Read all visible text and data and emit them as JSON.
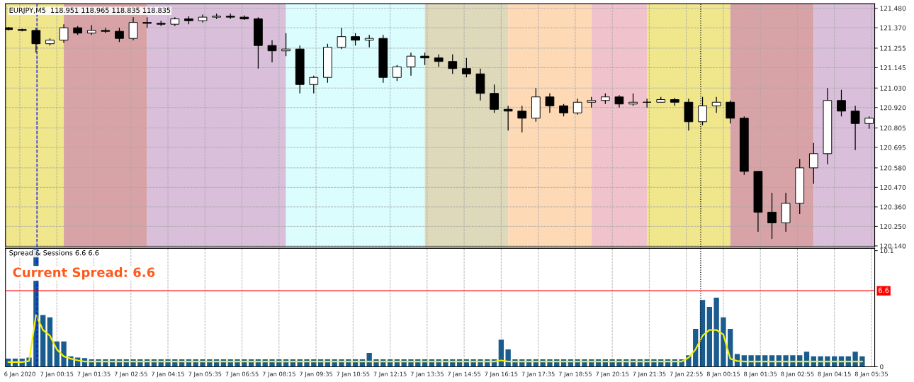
{
  "chart_data": [
    {
      "type": "candlestick",
      "title": "EURJPY,M5  118.951 118.965 118.835 118.835",
      "x": [
        "2020-01-06T22:30",
        "2020-01-06T23:00",
        "2020-01-06T23:30",
        "2020-01-07T00:00",
        "2020-01-07T00:30",
        "2020-01-07T01:00",
        "2020-01-07T01:30",
        "2020-01-07T02:00",
        "2020-01-07T02:30",
        "2020-01-07T03:00",
        "2020-01-07T03:30",
        "2020-01-07T04:00",
        "2020-01-07T04:30",
        "2020-01-07T05:00",
        "2020-01-07T05:30",
        "2020-01-07T06:00",
        "2020-01-07T06:30",
        "2020-01-07T07:00",
        "2020-01-07T07:30",
        "2020-01-07T08:00",
        "2020-01-07T08:30",
        "2020-01-07T09:00",
        "2020-01-07T09:30",
        "2020-01-07T10:00",
        "2020-01-07T10:30",
        "2020-01-07T11:00",
        "2020-01-07T11:30",
        "2020-01-07T12:00",
        "2020-01-07T12:30",
        "2020-01-07T13:00",
        "2020-01-07T13:30",
        "2020-01-07T14:00",
        "2020-01-07T14:30",
        "2020-01-07T15:00",
        "2020-01-07T15:30",
        "2020-01-07T16:00",
        "2020-01-07T16:30",
        "2020-01-07T17:00",
        "2020-01-07T17:30",
        "2020-01-07T18:00",
        "2020-01-07T18:30",
        "2020-01-07T19:00",
        "2020-01-07T19:30",
        "2020-01-07T20:00",
        "2020-01-07T20:30",
        "2020-01-07T21:00",
        "2020-01-07T21:30",
        "2020-01-07T22:00",
        "2020-01-07T22:30",
        "2020-01-07T23:00",
        "2020-01-07T23:30",
        "2020-01-08T00:00",
        "2020-01-08T00:30",
        "2020-01-08T01:00",
        "2020-01-08T01:30",
        "2020-01-08T02:00",
        "2020-01-08T02:30",
        "2020-01-08T03:00",
        "2020-01-08T03:30",
        "2020-01-08T04:00",
        "2020-01-08T04:30",
        "2020-01-08T05:00",
        "2020-01-08T05:30"
      ],
      "ohlc": [
        [
          121.37,
          121.375,
          121.355,
          121.36
        ],
        [
          121.36,
          121.365,
          121.35,
          121.355
        ],
        [
          121.355,
          121.37,
          121.23,
          121.28
        ],
        [
          121.28,
          121.31,
          121.27,
          121.3
        ],
        [
          121.3,
          121.39,
          121.285,
          121.37
        ],
        [
          121.37,
          121.38,
          121.33,
          121.34
        ],
        [
          121.34,
          121.385,
          121.33,
          121.355
        ],
        [
          121.355,
          121.37,
          121.34,
          121.35
        ],
        [
          121.35,
          121.37,
          121.29,
          121.31
        ],
        [
          121.31,
          121.43,
          121.3,
          121.4
        ],
        [
          121.4,
          121.43,
          121.37,
          121.395
        ],
        [
          121.395,
          121.41,
          121.38,
          121.39
        ],
        [
          121.39,
          121.43,
          121.38,
          121.42
        ],
        [
          121.42,
          121.435,
          121.39,
          121.41
        ],
        [
          121.41,
          121.445,
          121.4,
          121.43
        ],
        [
          121.43,
          121.45,
          121.42,
          121.435
        ],
        [
          121.435,
          121.45,
          121.42,
          121.43
        ],
        [
          121.43,
          121.44,
          121.415,
          121.42
        ],
        [
          121.42,
          121.43,
          121.14,
          121.27
        ],
        [
          121.27,
          121.3,
          121.175,
          121.24
        ],
        [
          121.24,
          121.34,
          121.21,
          121.25
        ],
        [
          121.25,
          121.27,
          121.0,
          121.05
        ],
        [
          121.05,
          121.1,
          121.0,
          121.09
        ],
        [
          121.09,
          121.28,
          121.06,
          121.26
        ],
        [
          121.26,
          121.37,
          121.25,
          121.32
        ],
        [
          121.32,
          121.34,
          121.27,
          121.3
        ],
        [
          121.3,
          121.33,
          121.26,
          121.31
        ],
        [
          121.31,
          121.33,
          121.06,
          121.09
        ],
        [
          121.09,
          121.16,
          121.07,
          121.15
        ],
        [
          121.15,
          121.23,
          121.1,
          121.21
        ],
        [
          121.21,
          121.23,
          121.16,
          121.2
        ],
        [
          121.2,
          121.22,
          121.15,
          121.18
        ],
        [
          121.18,
          121.22,
          121.11,
          121.14
        ],
        [
          121.14,
          121.2,
          121.09,
          121.11
        ],
        [
          121.11,
          121.14,
          120.96,
          121.0
        ],
        [
          121.0,
          121.05,
          120.89,
          120.91
        ],
        [
          120.91,
          120.93,
          120.79,
          120.9
        ],
        [
          120.9,
          120.93,
          120.78,
          120.86
        ],
        [
          120.86,
          121.03,
          120.84,
          120.98
        ],
        [
          120.98,
          121.0,
          120.89,
          120.93
        ],
        [
          120.93,
          120.94,
          120.87,
          120.89
        ],
        [
          120.89,
          120.97,
          120.88,
          120.95
        ],
        [
          120.95,
          120.98,
          120.92,
          120.96
        ],
        [
          120.96,
          121.0,
          120.94,
          120.98
        ],
        [
          120.98,
          120.99,
          120.92,
          120.94
        ],
        [
          120.94,
          121.0,
          120.93,
          120.95
        ],
        [
          120.95,
          120.97,
          120.92,
          120.95
        ],
        [
          120.95,
          120.98,
          120.95,
          120.965
        ],
        [
          120.965,
          120.975,
          120.93,
          120.95
        ],
        [
          120.95,
          120.97,
          120.79,
          120.84
        ],
        [
          120.84,
          120.98,
          120.82,
          120.93
        ],
        [
          120.93,
          120.98,
          120.89,
          120.95
        ],
        [
          120.95,
          120.96,
          120.83,
          120.86
        ],
        [
          120.86,
          120.87,
          120.54,
          120.56
        ],
        [
          120.56,
          120.56,
          120.22,
          120.33
        ],
        [
          120.33,
          120.44,
          120.18,
          120.27
        ],
        [
          120.27,
          120.44,
          120.22,
          120.38
        ],
        [
          120.38,
          120.63,
          120.32,
          120.58
        ],
        [
          120.58,
          120.72,
          120.49,
          120.66
        ],
        [
          120.66,
          121.03,
          120.6,
          120.96
        ],
        [
          120.96,
          121.02,
          120.87,
          120.9
        ],
        [
          120.9,
          120.93,
          120.68,
          120.83
        ],
        [
          120.83,
          120.87,
          120.8,
          120.86
        ]
      ],
      "xlim": [
        "2020-01-06T22:24",
        "2020-01-08T05:42"
      ],
      "ylim": [
        120.135,
        121.505
      ],
      "xticks": [
        {
          "value": "2020-01-06T22:55",
          "label": null
        },
        {
          "value": "2020-01-07T00:15",
          "label": null
        },
        {
          "value": "2020-01-07T01:35",
          "label": null
        },
        {
          "value": "2020-01-07T02:55",
          "label": null
        },
        {
          "value": "2020-01-07T04:15",
          "label": null
        },
        {
          "value": "2020-01-07T05:35",
          "label": null
        },
        {
          "value": "2020-01-07T06:55",
          "label": null
        },
        {
          "value": "2020-01-07T08:15",
          "label": null
        },
        {
          "value": "2020-01-07T09:35",
          "label": null
        },
        {
          "value": "2020-01-07T10:55",
          "label": null
        },
        {
          "value": "2020-01-07T12:15",
          "label": null
        },
        {
          "value": "2020-01-07T13:35",
          "label": null
        },
        {
          "value": "2020-01-07T14:55",
          "label": null
        },
        {
          "value": "2020-01-07T16:15",
          "label": null
        },
        {
          "value": "2020-01-07T17:35",
          "label": null
        },
        {
          "value": "2020-01-07T18:55",
          "label": null
        },
        {
          "value": "2020-01-07T20:15",
          "label": null
        },
        {
          "value": "2020-01-07T21:35",
          "label": null
        },
        {
          "value": "2020-01-07T22:55",
          "label": null
        },
        {
          "value": "2020-01-08T00:15",
          "label": null
        },
        {
          "value": "2020-01-08T01:35",
          "label": null
        },
        {
          "value": "2020-01-08T02:55",
          "label": null
        },
        {
          "value": "2020-01-08T04:15",
          "label": null
        },
        {
          "value": "2020-01-08T05:35",
          "label": null
        }
      ],
      "yticks": [
        {
          "value": 120.14,
          "label": "120.140"
        },
        {
          "value": 120.25,
          "label": "120.250"
        },
        {
          "value": 120.36,
          "label": "120.360"
        },
        {
          "value": 120.47,
          "label": "120.470"
        },
        {
          "value": 120.58,
          "label": "120.580"
        },
        {
          "value": 120.695,
          "label": "120.695"
        },
        {
          "value": 120.805,
          "label": "120.805"
        },
        {
          "value": 120.92,
          "label": "120.920"
        },
        {
          "value": 121.03,
          "label": "121.030"
        },
        {
          "value": 121.145,
          "label": "121.145"
        },
        {
          "value": 121.255,
          "label": "121.255"
        },
        {
          "value": 121.37,
          "label": "121.370"
        },
        {
          "value": 121.48,
          "label": "121.480"
        }
      ],
      "tick_labels": "y",
      "grid": true,
      "bands": [
        {
          "axis": "x",
          "from": "2020-01-06T22:24",
          "to": "2020-01-07T00:30",
          "color": "#f0e68c"
        },
        {
          "axis": "x",
          "from": "2020-01-07T00:30",
          "to": "2020-01-07T03:30",
          "color": "#d8a3a6"
        },
        {
          "axis": "x",
          "from": "2020-01-07T03:30",
          "to": "2020-01-07T08:30",
          "color": "#d9bfda"
        },
        {
          "axis": "x",
          "from": "2020-01-07T08:30",
          "to": "2020-01-07T13:30",
          "color": "#dbfdfe"
        },
        {
          "axis": "x",
          "from": "2020-01-07T13:30",
          "to": "2020-01-07T16:30",
          "color": "#ded9ba"
        },
        {
          "axis": "x",
          "from": "2020-01-07T16:30",
          "to": "2020-01-07T19:30",
          "color": "#fdd9b6"
        },
        {
          "axis": "x",
          "from": "2020-01-07T19:30",
          "to": "2020-01-07T21:30",
          "color": "#f0c3cc"
        },
        {
          "axis": "x",
          "from": "2020-01-07T21:30",
          "to": "2020-01-08T00:30",
          "color": "#f0e68c"
        },
        {
          "axis": "x",
          "from": "2020-01-08T00:30",
          "to": "2020-01-08T03:30",
          "color": "#d8a3a6"
        },
        {
          "axis": "x",
          "from": "2020-01-08T03:30",
          "to": "2020-01-08T05:42",
          "color": "#d9bfda"
        }
      ],
      "ref_lines": [
        {
          "axis": "x",
          "value": "2020-01-06T23:32",
          "color": "#0000ff",
          "line_style": "dashed"
        },
        {
          "axis": "x",
          "value": "2020-01-07T23:26",
          "color": "#000000",
          "line_style": "dotted"
        }
      ]
    },
    {
      "type": "bar",
      "title": "Spread & Sessions 6.6 6.6",
      "annotations": [
        "Current Spread: 6.6"
      ],
      "x": [
        "2020-01-06T22:30",
        "2020-01-06T22:45",
        "2020-01-06T23:00",
        "2020-01-06T23:15",
        "2020-01-06T23:30",
        "2020-01-06T23:45",
        "2020-01-07T00:00",
        "2020-01-07T00:15",
        "2020-01-07T00:30",
        "2020-01-07T00:45",
        "2020-01-07T01:00",
        "2020-01-07T01:15",
        "2020-01-07T01:30",
        "2020-01-07T01:45",
        "2020-01-07T02:00",
        "2020-01-07T02:15",
        "2020-01-07T02:30",
        "2020-01-07T02:45",
        "2020-01-07T03:00",
        "2020-01-07T03:15",
        "2020-01-07T03:30",
        "2020-01-07T03:45",
        "2020-01-07T04:00",
        "2020-01-07T04:15",
        "2020-01-07T04:30",
        "2020-01-07T04:45",
        "2020-01-07T05:00",
        "2020-01-07T05:15",
        "2020-01-07T05:30",
        "2020-01-07T05:45",
        "2020-01-07T06:00",
        "2020-01-07T06:15",
        "2020-01-07T06:30",
        "2020-01-07T06:45",
        "2020-01-07T07:00",
        "2020-01-07T07:15",
        "2020-01-07T07:30",
        "2020-01-07T07:45",
        "2020-01-07T08:00",
        "2020-01-07T08:15",
        "2020-01-07T08:30",
        "2020-01-07T08:45",
        "2020-01-07T09:00",
        "2020-01-07T09:15",
        "2020-01-07T09:30",
        "2020-01-07T09:45",
        "2020-01-07T10:00",
        "2020-01-07T10:15",
        "2020-01-07T10:30",
        "2020-01-07T10:45",
        "2020-01-07T11:00",
        "2020-01-07T11:15",
        "2020-01-07T11:30",
        "2020-01-07T11:45",
        "2020-01-07T12:00",
        "2020-01-07T12:15",
        "2020-01-07T12:30",
        "2020-01-07T12:45",
        "2020-01-07T13:00",
        "2020-01-07T13:15",
        "2020-01-07T13:30",
        "2020-01-07T13:45",
        "2020-01-07T14:00",
        "2020-01-07T14:15",
        "2020-01-07T14:30",
        "2020-01-07T14:45",
        "2020-01-07T15:00",
        "2020-01-07T15:15",
        "2020-01-07T15:30",
        "2020-01-07T15:45",
        "2020-01-07T16:00",
        "2020-01-07T16:15",
        "2020-01-07T16:30",
        "2020-01-07T16:45",
        "2020-01-07T17:00",
        "2020-01-07T17:15",
        "2020-01-07T17:30",
        "2020-01-07T17:45",
        "2020-01-07T18:00",
        "2020-01-07T18:15",
        "2020-01-07T18:30",
        "2020-01-07T18:45",
        "2020-01-07T19:00",
        "2020-01-07T19:15",
        "2020-01-07T19:30",
        "2020-01-07T19:45",
        "2020-01-07T20:00",
        "2020-01-07T20:15",
        "2020-01-07T20:30",
        "2020-01-07T20:45",
        "2020-01-07T21:00",
        "2020-01-07T21:15",
        "2020-01-07T21:30",
        "2020-01-07T21:45",
        "2020-01-07T22:00",
        "2020-01-07T22:15",
        "2020-01-07T22:30",
        "2020-01-07T22:45",
        "2020-01-07T23:00",
        "2020-01-07T23:15",
        "2020-01-07T23:30",
        "2020-01-07T23:45",
        "2020-01-08T00:00",
        "2020-01-08T00:15",
        "2020-01-08T00:30",
        "2020-01-08T00:45",
        "2020-01-08T01:00",
        "2020-01-08T01:15",
        "2020-01-08T01:30",
        "2020-01-08T01:45",
        "2020-01-08T02:00",
        "2020-01-08T02:15",
        "2020-01-08T02:30",
        "2020-01-08T02:45",
        "2020-01-08T03:00",
        "2020-01-08T03:15",
        "2020-01-08T03:30",
        "2020-01-08T03:45",
        "2020-01-08T04:00",
        "2020-01-08T04:15",
        "2020-01-08T04:30",
        "2020-01-08T04:45",
        "2020-01-08T05:00",
        "2020-01-08T05:15"
      ],
      "series": [
        {
          "type": "bar",
          "color": "#1b5c8f",
          "values": [
            0.7,
            0.7,
            0.7,
            0.8,
            10.3,
            4.5,
            4.3,
            2.2,
            2.2,
            0.9,
            0.8,
            0.75,
            0.65,
            0.65,
            0.65,
            0.65,
            0.65,
            0.65,
            0.65,
            0.65,
            0.65,
            0.65,
            0.65,
            0.65,
            0.65,
            0.65,
            0.65,
            0.65,
            0.65,
            0.65,
            0.65,
            0.65,
            0.65,
            0.65,
            0.65,
            0.65,
            0.65,
            0.65,
            0.65,
            0.65,
            0.65,
            0.65,
            0.65,
            0.65,
            0.65,
            0.65,
            0.65,
            0.65,
            0.65,
            0.65,
            0.65,
            0.65,
            1.2,
            0.65,
            0.65,
            0.65,
            0.65,
            0.65,
            0.65,
            0.65,
            0.65,
            0.65,
            0.65,
            0.65,
            0.65,
            0.65,
            0.65,
            0.65,
            0.65,
            0.65,
            0.65,
            2.35,
            1.5,
            0.65,
            0.65,
            0.65,
            0.65,
            0.65,
            0.65,
            0.65,
            0.65,
            0.65,
            0.65,
            0.65,
            0.65,
            0.65,
            0.65,
            0.65,
            0.65,
            0.65,
            0.65,
            0.65,
            0.65,
            0.65,
            0.65,
            0.65,
            0.65,
            0.65,
            1.0,
            3.3,
            5.8,
            5.2,
            6.0,
            4.3,
            3.3,
            1.1,
            1.0,
            1.0,
            1.0,
            1.0,
            1.0,
            1.0,
            1.0,
            1.0,
            1.0,
            1.3,
            0.9,
            0.9,
            0.9,
            0.9,
            0.9,
            0.9,
            1.3,
            0.9
          ]
        },
        {
          "type": "line",
          "color": "#f5f000",
          "values": [
            0.4,
            0.4,
            0.4,
            0.5,
            4.5,
            3.2,
            2.7,
            1.5,
            0.9,
            0.7,
            0.55,
            0.45,
            0.45,
            0.45,
            0.45,
            0.45,
            0.45,
            0.45,
            0.45,
            0.45,
            0.45,
            0.45,
            0.45,
            0.45,
            0.45,
            0.45,
            0.45,
            0.45,
            0.45,
            0.45,
            0.45,
            0.45,
            0.45,
            0.45,
            0.45,
            0.45,
            0.45,
            0.45,
            0.45,
            0.45,
            0.45,
            0.45,
            0.45,
            0.45,
            0.45,
            0.45,
            0.45,
            0.45,
            0.45,
            0.45,
            0.45,
            0.45,
            0.45,
            0.45,
            0.45,
            0.45,
            0.45,
            0.45,
            0.45,
            0.45,
            0.45,
            0.45,
            0.45,
            0.45,
            0.45,
            0.45,
            0.45,
            0.45,
            0.45,
            0.45,
            0.45,
            0.55,
            0.45,
            0.45,
            0.45,
            0.45,
            0.45,
            0.45,
            0.45,
            0.45,
            0.45,
            0.45,
            0.45,
            0.45,
            0.45,
            0.45,
            0.45,
            0.45,
            0.45,
            0.45,
            0.45,
            0.45,
            0.45,
            0.45,
            0.45,
            0.45,
            0.45,
            0.45,
            0.8,
            1.5,
            2.7,
            3.2,
            3.2,
            2.8,
            0.7,
            0.5,
            0.45,
            0.45,
            0.45,
            0.45,
            0.45,
            0.45,
            0.45,
            0.45,
            0.45,
            0.45,
            0.45,
            0.45,
            0.45,
            0.45,
            0.45,
            0.45,
            0.45,
            0.45
          ]
        }
      ],
      "xlim": [
        "2020-01-06T22:24",
        "2020-01-08T05:42"
      ],
      "ylim": [
        0,
        10.3
      ],
      "xticks": [
        {
          "value": "2020-01-06T22:55",
          "label": "6 Jan 2020"
        },
        {
          "value": "2020-01-07T00:15",
          "label": "7 Jan 00:15"
        },
        {
          "value": "2020-01-07T01:35",
          "label": "7 Jan 01:35"
        },
        {
          "value": "2020-01-07T02:55",
          "label": "7 Jan 02:55"
        },
        {
          "value": "2020-01-07T04:15",
          "label": "7 Jan 04:15"
        },
        {
          "value": "2020-01-07T05:35",
          "label": "7 Jan 05:35"
        },
        {
          "value": "2020-01-07T06:55",
          "label": "7 Jan 06:55"
        },
        {
          "value": "2020-01-07T08:15",
          "label": "7 Jan 08:15"
        },
        {
          "value": "2020-01-07T09:35",
          "label": "7 Jan 09:35"
        },
        {
          "value": "2020-01-07T10:55",
          "label": "7 Jan 10:55"
        },
        {
          "value": "2020-01-07T12:15",
          "label": "7 Jan 12:15"
        },
        {
          "value": "2020-01-07T13:35",
          "label": "7 Jan 13:35"
        },
        {
          "value": "2020-01-07T14:55",
          "label": "7 Jan 14:55"
        },
        {
          "value": "2020-01-07T16:15",
          "label": "7 Jan 16:15"
        },
        {
          "value": "2020-01-07T17:35",
          "label": "7 Jan 17:35"
        },
        {
          "value": "2020-01-07T18:55",
          "label": "7 Jan 18:55"
        },
        {
          "value": "2020-01-07T20:15",
          "label": "7 Jan 20:15"
        },
        {
          "value": "2020-01-07T21:35",
          "label": "7 Jan 21:35"
        },
        {
          "value": "2020-01-07T22:55",
          "label": "7 Jan 22:55"
        },
        {
          "value": "2020-01-08T00:15",
          "label": "8 Jan 00:15"
        },
        {
          "value": "2020-01-08T01:35",
          "label": "8 Jan 01:35"
        },
        {
          "value": "2020-01-08T02:55",
          "label": "8 Jan 02:55"
        },
        {
          "value": "2020-01-08T04:15",
          "label": "8 Jan 04:15"
        },
        {
          "value": "2020-01-08T05:35",
          "label": "8 Jan 05:35"
        }
      ],
      "yticks": [
        0,
        10.1
      ],
      "grid": "x",
      "ref_lines": [
        {
          "axis": "x",
          "value": "2020-01-06T23:32",
          "color": "#0000ff",
          "line_style": "dashed"
        },
        {
          "axis": "x",
          "value": "2020-01-07T23:26",
          "color": "#000000",
          "line_style": "dotted"
        },
        {
          "axis": "y",
          "value": 6.6,
          "label": "6.6",
          "color": "#ff0000",
          "line_style": "solid"
        }
      ]
    }
  ]
}
